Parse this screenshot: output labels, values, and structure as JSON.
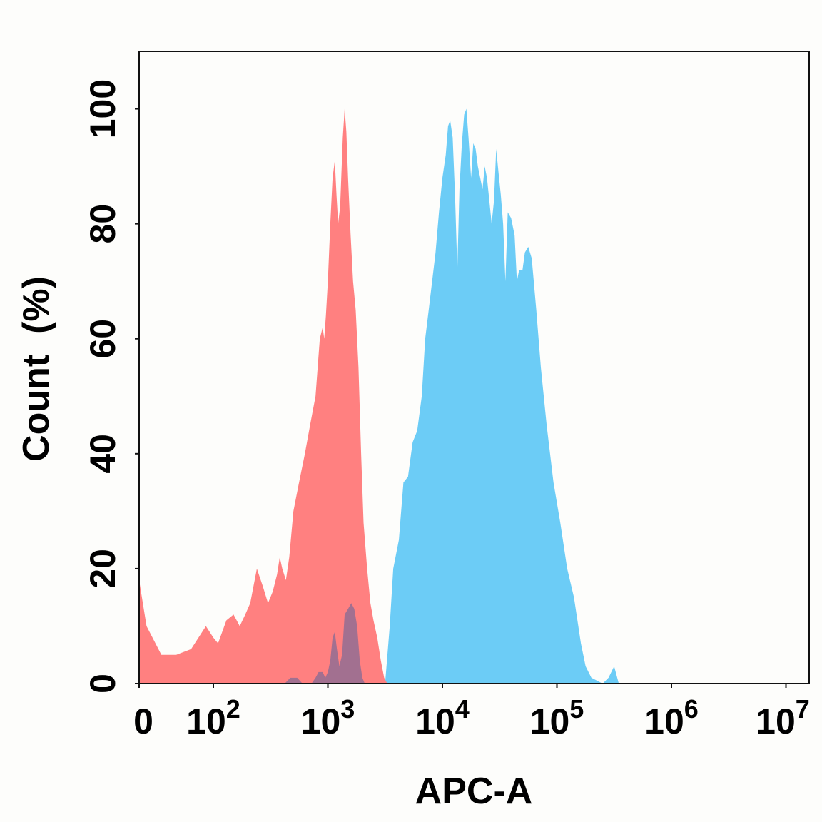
{
  "chart_data": {
    "type": "area",
    "xlabel": "APC-A",
    "ylabel": "Count  (%)",
    "x_scale": "biexponential (linear near 0, log10 above)",
    "xlim": [
      0,
      10000000
    ],
    "ylim": [
      0,
      110
    ],
    "grid": false,
    "yticks": [
      0,
      20,
      40,
      60,
      80,
      100
    ],
    "ytick_labels": [
      "0",
      "20",
      "40",
      "60",
      "80",
      "100"
    ],
    "xticks": [
      {
        "value": 0,
        "base": "0",
        "exp": ""
      },
      {
        "value": 100,
        "base": "10",
        "exp": "2"
      },
      {
        "value": 1000,
        "base": "10",
        "exp": "3"
      },
      {
        "value": 10000,
        "base": "10",
        "exp": "4"
      },
      {
        "value": 100000,
        "base": "10",
        "exp": "5"
      },
      {
        "value": 1000000,
        "base": "10",
        "exp": "6"
      },
      {
        "value": 10000000,
        "base": "10",
        "exp": "7"
      }
    ],
    "series": [
      {
        "color": "#6cccf6",
        "points": [
          [
            3160,
            0
          ],
          [
            3470,
            10
          ],
          [
            3720,
            20
          ],
          [
            4170,
            25
          ],
          [
            4570,
            35
          ],
          [
            5010,
            36
          ],
          [
            5500,
            42
          ],
          [
            6030,
            44
          ],
          [
            6610,
            50
          ],
          [
            7080,
            60
          ],
          [
            7590,
            65
          ],
          [
            8130,
            70
          ],
          [
            8710,
            75
          ],
          [
            9330,
            82
          ],
          [
            10000,
            88
          ],
          [
            10700,
            92
          ],
          [
            11200,
            97
          ],
          [
            11700,
            98
          ],
          [
            12300,
            95
          ],
          [
            12900,
            85
          ],
          [
            13500,
            72
          ],
          [
            14100,
            86
          ],
          [
            14800,
            94
          ],
          [
            15500,
            99
          ],
          [
            16200,
            100
          ],
          [
            16900,
            95
          ],
          [
            17800,
            88
          ],
          [
            18600,
            94
          ],
          [
            19500,
            93
          ],
          [
            20400,
            90
          ],
          [
            21400,
            88
          ],
          [
            22400,
            86
          ],
          [
            23400,
            90
          ],
          [
            24500,
            88
          ],
          [
            25700,
            84
          ],
          [
            26900,
            80
          ],
          [
            28200,
            84
          ],
          [
            29500,
            93
          ],
          [
            30900,
            89
          ],
          [
            32400,
            85
          ],
          [
            33900,
            80
          ],
          [
            35500,
            70
          ],
          [
            37200,
            82
          ],
          [
            39800,
            81
          ],
          [
            42700,
            78
          ],
          [
            44700,
            70
          ],
          [
            46800,
            72
          ],
          [
            50100,
            72
          ],
          [
            52500,
            75
          ],
          [
            56200,
            76
          ],
          [
            60300,
            74
          ],
          [
            66100,
            65
          ],
          [
            72400,
            55
          ],
          [
            81300,
            45
          ],
          [
            93300,
            35
          ],
          [
            107000,
            28
          ],
          [
            123000,
            20
          ],
          [
            141000,
            15
          ],
          [
            162000,
            7
          ],
          [
            178000,
            3
          ],
          [
            200000,
            1
          ],
          [
            251000,
            0
          ],
          [
            282000,
            1
          ],
          [
            316000,
            3
          ],
          [
            347000,
            0
          ]
        ]
      },
      {
        "color": "#ff8080",
        "points": [
          [
            0,
            18
          ],
          [
            10,
            10
          ],
          [
            30,
            5
          ],
          [
            50,
            5
          ],
          [
            70,
            6
          ],
          [
            80,
            8
          ],
          [
            90,
            10
          ],
          [
            100,
            8
          ],
          [
            110,
            7
          ],
          [
            130,
            11
          ],
          [
            150,
            12
          ],
          [
            170,
            10
          ],
          [
            190,
            12
          ],
          [
            210,
            14
          ],
          [
            240,
            20
          ],
          [
            270,
            17
          ],
          [
            300,
            14
          ],
          [
            330,
            16
          ],
          [
            360,
            19
          ],
          [
            380,
            22
          ],
          [
            400,
            20
          ],
          [
            430,
            18
          ],
          [
            460,
            22
          ],
          [
            500,
            30
          ],
          [
            560,
            35
          ],
          [
            630,
            40
          ],
          [
            700,
            45
          ],
          [
            780,
            50
          ],
          [
            850,
            60
          ],
          [
            900,
            62
          ],
          [
            930,
            60
          ],
          [
            960,
            64
          ],
          [
            1000,
            70
          ],
          [
            1050,
            80
          ],
          [
            1100,
            88
          ],
          [
            1150,
            91
          ],
          [
            1190,
            85
          ],
          [
            1230,
            80
          ],
          [
            1280,
            83
          ],
          [
            1350,
            95
          ],
          [
            1400,
            100
          ],
          [
            1450,
            96
          ],
          [
            1500,
            88
          ],
          [
            1580,
            78
          ],
          [
            1660,
            70
          ],
          [
            1750,
            65
          ],
          [
            1850,
            55
          ],
          [
            1950,
            40
          ],
          [
            2050,
            28
          ],
          [
            2200,
            20
          ],
          [
            2350,
            14
          ],
          [
            2500,
            11
          ],
          [
            2700,
            8
          ],
          [
            2900,
            4
          ],
          [
            3100,
            1
          ],
          [
            3300,
            0
          ]
        ]
      },
      {
        "color": "#a27090",
        "points": [
          [
            420,
            0
          ],
          [
            470,
            1
          ],
          [
            540,
            1
          ],
          [
            600,
            0
          ],
          [
            720,
            0
          ],
          [
            780,
            1
          ],
          [
            830,
            2
          ],
          [
            900,
            2
          ],
          [
            950,
            1
          ],
          [
            1000,
            2
          ],
          [
            1050,
            4
          ],
          [
            1100,
            8
          ],
          [
            1150,
            9
          ],
          [
            1200,
            6
          ],
          [
            1260,
            3
          ],
          [
            1330,
            5
          ],
          [
            1400,
            12
          ],
          [
            1500,
            13
          ],
          [
            1600,
            14
          ],
          [
            1700,
            13
          ],
          [
            1800,
            10
          ],
          [
            1900,
            4
          ],
          [
            2000,
            1
          ],
          [
            2100,
            0
          ]
        ]
      }
    ]
  }
}
